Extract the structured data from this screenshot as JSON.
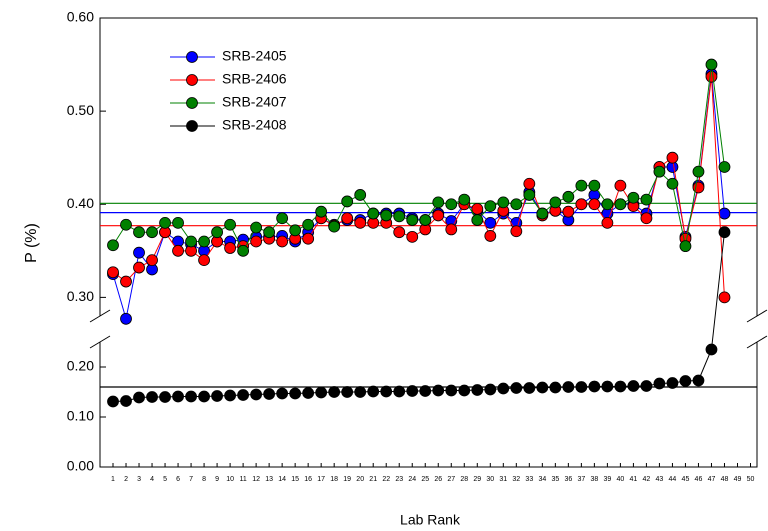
{
  "chart_data": {
    "type": "line",
    "xlabel": "Lab Rank",
    "ylabel": "P (%)",
    "x": [
      1,
      2,
      3,
      4,
      5,
      6,
      7,
      8,
      9,
      10,
      11,
      12,
      13,
      14,
      15,
      16,
      17,
      18,
      19,
      20,
      21,
      22,
      23,
      24,
      25,
      26,
      27,
      28,
      29,
      30,
      31,
      32,
      33,
      34,
      35,
      36,
      37,
      38,
      39,
      40,
      41,
      42,
      43,
      44,
      45,
      46,
      47,
      48
    ],
    "xlim": [
      0,
      50.5
    ],
    "xticks": [
      1,
      2,
      3,
      4,
      5,
      6,
      7,
      8,
      9,
      10,
      11,
      12,
      13,
      14,
      15,
      16,
      17,
      18,
      19,
      20,
      21,
      22,
      23,
      24,
      25,
      26,
      27,
      28,
      29,
      30,
      31,
      32,
      33,
      34,
      35,
      36,
      37,
      38,
      39,
      40,
      41,
      42,
      43,
      44,
      45,
      46,
      47,
      48,
      49,
      50
    ],
    "ylim": [
      0,
      0.6
    ],
    "y_break": [
      0.25,
      0.28
    ],
    "yticks": [
      {
        "value": 0,
        "label": "0.00"
      },
      {
        "value": 0.1,
        "label": "0.10"
      },
      {
        "value": 0.2,
        "label": "0.20"
      },
      {
        "value": 0.3,
        "label": "0.30"
      },
      {
        "value": 0.4,
        "label": "0.40"
      },
      {
        "value": 0.5,
        "label": "0.50"
      },
      {
        "value": 0.6,
        "label": "0.60"
      }
    ],
    "legend": "upper-left",
    "series": [
      {
        "name": "SRB-2405",
        "color": "#0000ff",
        "reference": 0.391,
        "values": [
          0.325,
          0.277,
          0.348,
          0.33,
          0.37,
          0.36,
          0.357,
          0.35,
          0.36,
          0.36,
          0.362,
          0.365,
          0.365,
          0.366,
          0.36,
          0.37,
          0.385,
          0.378,
          0.383,
          0.383,
          0.39,
          0.39,
          0.39,
          0.385,
          0.383,
          0.39,
          0.382,
          0.4,
          0.393,
          0.38,
          0.39,
          0.38,
          0.413,
          0.39,
          0.393,
          0.383,
          0.4,
          0.41,
          0.39,
          0.4,
          0.4,
          0.39,
          0.44,
          0.44,
          0.365,
          0.42,
          0.54,
          0.39
        ]
      },
      {
        "name": "SRB-2406",
        "color": "#ff0000",
        "reference": 0.377,
        "values": [
          0.327,
          0.317,
          0.332,
          0.34,
          0.37,
          0.35,
          0.35,
          0.34,
          0.36,
          0.353,
          0.355,
          0.36,
          0.363,
          0.36,
          0.363,
          0.363,
          0.385,
          0.377,
          0.385,
          0.38,
          0.38,
          0.38,
          0.37,
          0.365,
          0.373,
          0.388,
          0.373,
          0.4,
          0.395,
          0.366,
          0.393,
          0.371,
          0.422,
          0.388,
          0.393,
          0.392,
          0.4,
          0.4,
          0.38,
          0.42,
          0.398,
          0.385,
          0.44,
          0.45,
          0.363,
          0.418,
          0.537,
          0.3
        ]
      },
      {
        "name": "SRB-2407",
        "color": "#008000",
        "reference": 0.401,
        "values": [
          0.356,
          0.378,
          0.37,
          0.37,
          0.38,
          0.38,
          0.36,
          0.36,
          0.37,
          0.378,
          0.35,
          0.375,
          0.37,
          0.385,
          0.372,
          0.378,
          0.392,
          0.376,
          0.403,
          0.41,
          0.39,
          0.388,
          0.387,
          0.383,
          0.383,
          0.402,
          0.4,
          0.405,
          0.383,
          0.398,
          0.402,
          0.4,
          0.41,
          0.39,
          0.402,
          0.408,
          0.42,
          0.42,
          0.4,
          0.4,
          0.407,
          0.405,
          0.435,
          0.422,
          0.355,
          0.435,
          0.55,
          0.44
        ]
      },
      {
        "name": "SRB-2408",
        "color": "#000000",
        "reference": 0.16,
        "values": [
          0.131,
          0.132,
          0.139,
          0.14,
          0.14,
          0.141,
          0.141,
          0.141,
          0.142,
          0.143,
          0.144,
          0.145,
          0.146,
          0.147,
          0.147,
          0.148,
          0.149,
          0.15,
          0.15,
          0.15,
          0.151,
          0.151,
          0.151,
          0.152,
          0.152,
          0.153,
          0.153,
          0.153,
          0.154,
          0.155,
          0.157,
          0.158,
          0.158,
          0.159,
          0.159,
          0.16,
          0.16,
          0.161,
          0.161,
          0.161,
          0.162,
          0.162,
          0.167,
          0.168,
          0.172,
          0.173,
          0.235,
          0.37
        ]
      }
    ]
  }
}
